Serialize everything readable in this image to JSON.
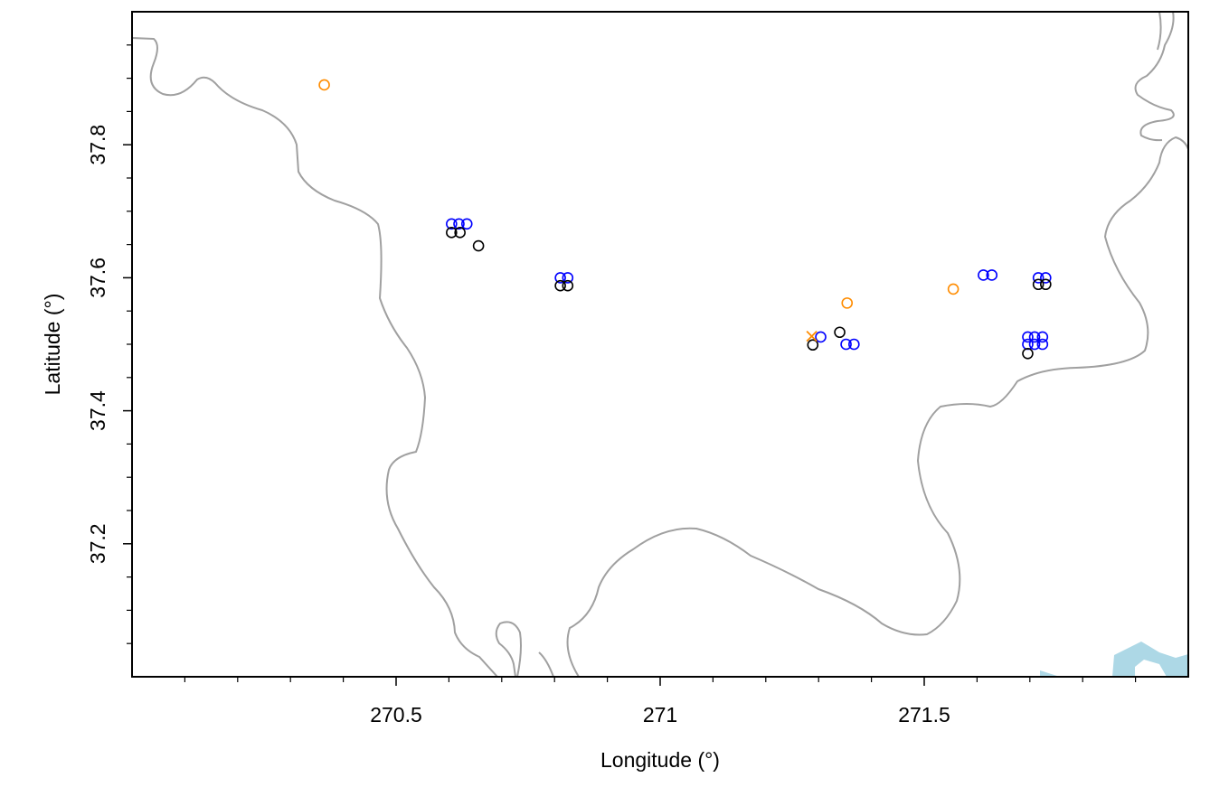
{
  "chart_data": {
    "type": "scatter",
    "x_label": "Longitude (°)",
    "y_label": "Latitude (°)",
    "xlim": [
      270,
      272
    ],
    "ylim": [
      37,
      38
    ],
    "xticks": [
      270.5,
      271,
      271.5
    ],
    "yticks": [
      37.2,
      37.4,
      37.6,
      37.8
    ],
    "xminorticks": [
      270.1,
      270.2,
      270.3,
      270.4,
      270.6,
      270.7,
      270.8,
      270.9,
      271.1,
      271.2,
      271.3,
      271.4,
      271.6,
      271.7,
      271.8,
      271.9
    ],
    "yminorticks": [
      37.05,
      37.1,
      37.15,
      37.25,
      37.3,
      37.35,
      37.45,
      37.5,
      37.55,
      37.65,
      37.7,
      37.75,
      37.85,
      37.9,
      37.95
    ],
    "series": [
      {
        "color": "#0000ff",
        "marker": "circle",
        "x": [
          270.605,
          270.619,
          270.634,
          270.811,
          270.825,
          271.304,
          271.352,
          271.367,
          271.612,
          271.628,
          271.716,
          271.73,
          271.696,
          271.709,
          271.724,
          271.696,
          271.709,
          271.724
        ],
        "values": [
          37.681,
          37.681,
          37.681,
          37.6,
          37.6,
          37.511,
          37.5,
          37.5,
          37.604,
          37.604,
          37.6,
          37.6,
          37.511,
          37.511,
          37.511,
          37.5,
          37.5,
          37.5
        ]
      },
      {
        "color": "#000000",
        "marker": "circle",
        "x": [
          270.605,
          270.621,
          270.656,
          270.811,
          270.825,
          271.289,
          271.34,
          271.696,
          271.716,
          271.73
        ],
        "values": [
          37.668,
          37.668,
          37.648,
          37.588,
          37.588,
          37.499,
          37.518,
          37.486,
          37.59,
          37.59
        ]
      },
      {
        "color": "#ff8c00",
        "marker": "circle",
        "x": [
          270.364,
          271.354,
          271.555
        ],
        "values": [
          37.89,
          37.562,
          37.583
        ]
      },
      {
        "color": "#ff8c00",
        "marker": "x",
        "x": [
          271.287
        ],
        "values": [
          37.512
        ]
      }
    ]
  }
}
